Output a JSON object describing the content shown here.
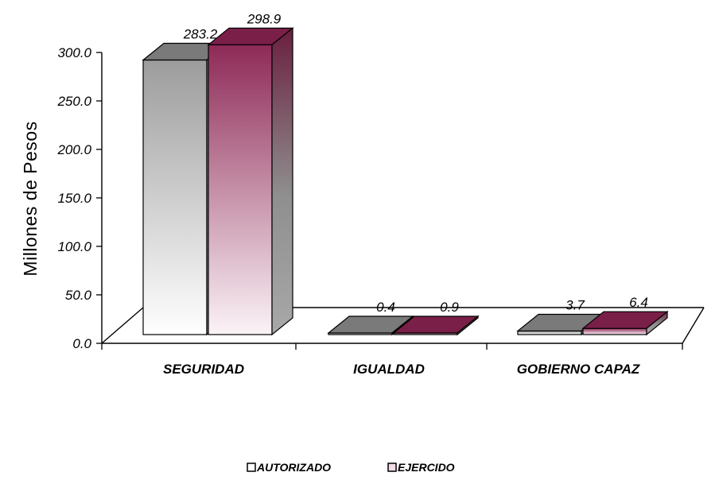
{
  "chart_data": {
    "type": "bar",
    "title": "",
    "xlabel": "",
    "ylabel": "Millones de Pesos",
    "categories": [
      "SEGURIDAD",
      "IGUALDAD",
      "GOBIERNO CAPAZ"
    ],
    "series": [
      {
        "name": "AUTORIZADO",
        "values": [
          283.2,
          0.4,
          3.7
        ],
        "value_labels": [
          "283.2",
          "0.4",
          "3.7"
        ],
        "color": "#9a9a9a"
      },
      {
        "name": "EJERCIDO",
        "values": [
          298.9,
          0.9,
          6.4
        ],
        "value_labels": [
          "298.9",
          "0.9",
          "6.4"
        ],
        "color": "#8c2a55"
      }
    ],
    "ylim": [
      0,
      300
    ],
    "yticks": [
      "0.0",
      "50.0",
      "100.0",
      "150.0",
      "200.0",
      "250.0",
      "300.0"
    ],
    "grid": false,
    "legend_position": "bottom",
    "style": "3d-clustered-column"
  }
}
